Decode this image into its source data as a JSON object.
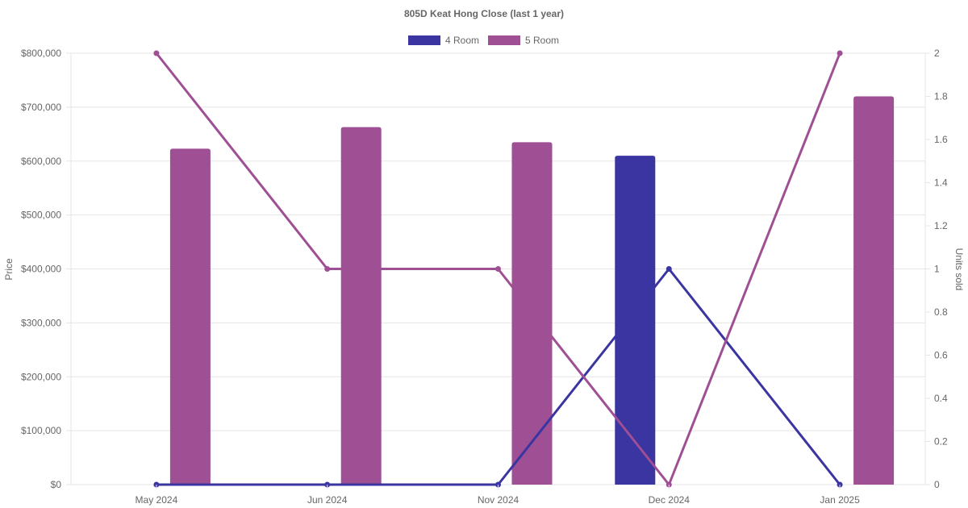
{
  "chart_data": {
    "type": "bar",
    "title": "805D Keat Hong Close (last 1 year)",
    "categories": [
      "May 2024",
      "Jun 2024",
      "Nov 2024",
      "Dec 2024",
      "Jan 2025"
    ],
    "y_left": {
      "label": "Price",
      "range": [
        0,
        800000
      ],
      "ticks": [
        "$0",
        "$100,000",
        "$200,000",
        "$300,000",
        "$400,000",
        "$500,000",
        "$600,000",
        "$700,000",
        "$800,000"
      ]
    },
    "y_right": {
      "label": "Units sold",
      "range": [
        0,
        2
      ],
      "ticks": [
        "0",
        "0.2",
        "0.4",
        "0.6",
        "0.8",
        "1",
        "1.2",
        "1.4",
        "1.6",
        "1.8",
        "2"
      ]
    },
    "grid": true,
    "legend_position": "top",
    "legend": [
      {
        "name": "4 Room",
        "color": "#3a35a0"
      },
      {
        "name": "5 Room",
        "color": "#9f4f93"
      }
    ],
    "bar_series": [
      {
        "name": "4 Room",
        "color": "#3a35a0",
        "values": [
          null,
          null,
          null,
          610000,
          null
        ]
      },
      {
        "name": "5 Room",
        "color": "#9f4f93",
        "values": [
          623000,
          663000,
          635000,
          null,
          720000
        ]
      }
    ],
    "line_series": [
      {
        "name": "4 Room",
        "color": "#3a35a0",
        "values": [
          0,
          0,
          0,
          1,
          0
        ]
      },
      {
        "name": "5 Room",
        "color": "#9f4f93",
        "values": [
          2,
          1,
          1,
          0,
          2
        ]
      }
    ]
  }
}
